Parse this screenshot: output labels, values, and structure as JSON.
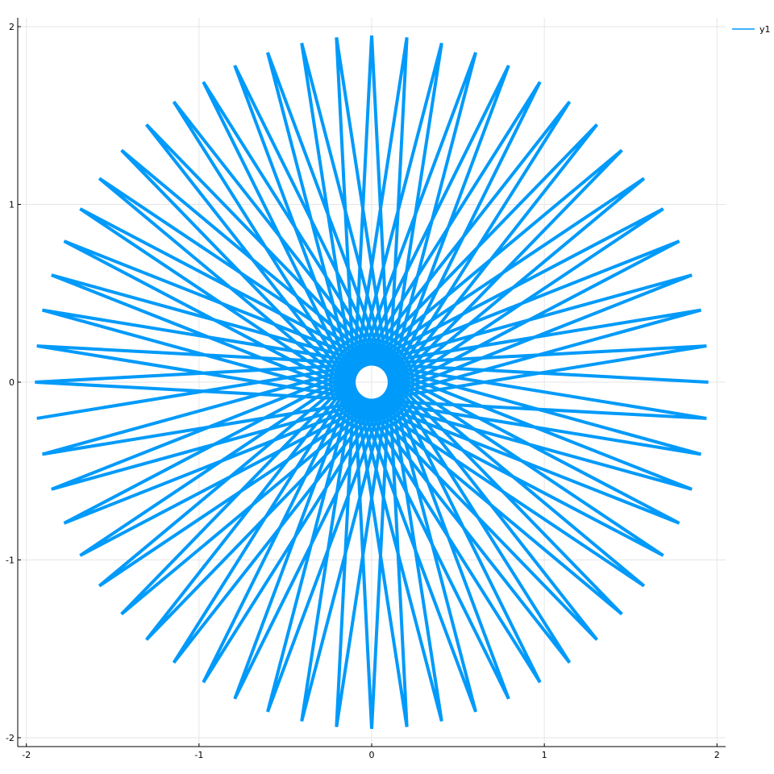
{
  "chart_data": {
    "type": "line",
    "title": "",
    "xlabel": "",
    "ylabel": "",
    "xlim": [
      -2.05,
      2.05
    ],
    "ylim": [
      -2.05,
      2.05
    ],
    "x_ticks": [
      -2,
      -1,
      0,
      1,
      2
    ],
    "y_ticks": [
      -2,
      -1,
      0,
      1,
      2
    ],
    "x_tick_labels": [
      "-2",
      "-1",
      "0",
      "1",
      "2"
    ],
    "y_tick_labels": [
      "-2",
      "-1",
      "0",
      "1",
      "2"
    ],
    "grid": true,
    "legend_position": "top-right",
    "series": [
      {
        "name": "y1",
        "color": "#009AFA",
        "description_note": null,
        "curve": {
          "kind": "polar_star_polygon",
          "radius": 1.95,
          "vertices": 59,
          "step_angle_deg": 174
        }
      }
    ]
  }
}
